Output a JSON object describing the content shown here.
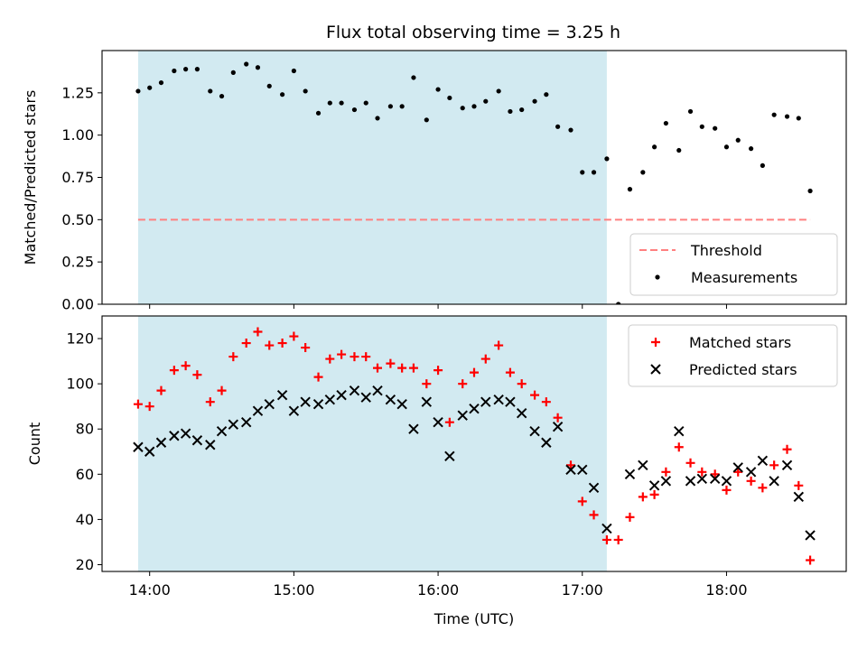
{
  "title": "Flux total observing time = 3.25 h",
  "colors": {
    "shade": "#add8e6",
    "threshold": "#ff8080",
    "matched": "#ff0000",
    "predicted": "#000000",
    "measurement": "#000000"
  },
  "chart_data": [
    {
      "type": "scatter",
      "ylabel": "Matched/Predicted stars",
      "xlim": [
        13.67,
        18.83
      ],
      "ylim": [
        0.0,
        1.5
      ],
      "yticks": [
        0.0,
        0.25,
        0.5,
        0.75,
        1.0,
        1.25
      ],
      "ytick_labels": [
        "0.00",
        "0.25",
        "0.50",
        "0.75",
        "1.00",
        "1.25"
      ],
      "shaded_interval": [
        13.92,
        17.17
      ],
      "threshold": {
        "name": "Threshold",
        "value": 0.5,
        "x_range": [
          13.92,
          18.58
        ],
        "style": "dashed"
      },
      "series": [
        {
          "name": "Measurements",
          "marker": "dot",
          "x": [
            13.92,
            14.0,
            14.08,
            14.17,
            14.25,
            14.33,
            14.42,
            14.5,
            14.58,
            14.67,
            14.75,
            14.83,
            14.92,
            15.0,
            15.08,
            15.17,
            15.25,
            15.33,
            15.42,
            15.5,
            15.58,
            15.67,
            15.75,
            15.83,
            15.92,
            16.0,
            16.08,
            16.17,
            16.25,
            16.33,
            16.42,
            16.5,
            16.58,
            16.67,
            16.75,
            16.83,
            16.92,
            17.0,
            17.08,
            17.17,
            17.25,
            17.33,
            17.42,
            17.5,
            17.58,
            17.67,
            17.75,
            17.83,
            17.92,
            18.0,
            18.08,
            18.17,
            18.25,
            18.33,
            18.42,
            18.5,
            18.58
          ],
          "y": [
            1.26,
            1.28,
            1.31,
            1.38,
            1.39,
            1.39,
            1.26,
            1.23,
            1.37,
            1.42,
            1.4,
            1.29,
            1.24,
            1.38,
            1.26,
            1.13,
            1.19,
            1.19,
            1.15,
            1.19,
            1.1,
            1.17,
            1.17,
            1.34,
            1.09,
            1.27,
            1.22,
            1.16,
            1.17,
            1.2,
            1.26,
            1.14,
            1.15,
            1.2,
            1.24,
            1.05,
            1.03,
            0.78,
            0.78,
            0.86,
            0.0,
            0.68,
            0.78,
            0.93,
            1.07,
            0.91,
            1.14,
            1.05,
            1.04,
            0.93,
            0.97,
            0.92,
            0.82,
            1.12,
            1.11,
            1.1,
            0.67
          ]
        }
      ]
    },
    {
      "type": "scatter",
      "xlabel": "Time (UTC)",
      "ylabel": "Count",
      "xlim": [
        13.67,
        18.83
      ],
      "ylim": [
        17,
        130
      ],
      "xticks": [
        14,
        15,
        16,
        17,
        18
      ],
      "xtick_labels": [
        "14:00",
        "15:00",
        "16:00",
        "17:00",
        "18:00"
      ],
      "yticks": [
        20,
        40,
        60,
        80,
        100,
        120
      ],
      "ytick_labels": [
        "20",
        "40",
        "60",
        "80",
        "100",
        "120"
      ],
      "shaded_interval": [
        13.92,
        17.17
      ],
      "series": [
        {
          "name": "Matched stars",
          "marker": "plus",
          "x": [
            13.92,
            14.0,
            14.08,
            14.17,
            14.25,
            14.33,
            14.42,
            14.5,
            14.58,
            14.67,
            14.75,
            14.83,
            14.92,
            15.0,
            15.08,
            15.17,
            15.25,
            15.33,
            15.42,
            15.5,
            15.58,
            15.67,
            15.75,
            15.83,
            15.92,
            16.0,
            16.08,
            16.17,
            16.25,
            16.33,
            16.42,
            16.5,
            16.58,
            16.67,
            16.75,
            16.83,
            16.92,
            17.0,
            17.08,
            17.17,
            17.25,
            17.33,
            17.42,
            17.5,
            17.58,
            17.67,
            17.75,
            17.83,
            17.92,
            18.0,
            18.08,
            18.17,
            18.25,
            18.33,
            18.42,
            18.5,
            18.58
          ],
          "y": [
            91,
            90,
            97,
            106,
            108,
            104,
            92,
            97,
            112,
            118,
            123,
            117,
            118,
            121,
            116,
            103,
            111,
            113,
            112,
            112,
            107,
            109,
            107,
            107,
            100,
            106,
            83,
            100,
            105,
            111,
            117,
            105,
            100,
            95,
            92,
            85,
            64,
            48,
            42,
            31,
            31,
            41,
            50,
            51,
            61,
            72,
            65,
            61,
            60,
            53,
            61,
            57,
            54,
            64,
            71,
            55,
            22
          ]
        },
        {
          "name": "Predicted stars",
          "marker": "x",
          "x": [
            13.92,
            14.0,
            14.08,
            14.17,
            14.25,
            14.33,
            14.42,
            14.5,
            14.58,
            14.67,
            14.75,
            14.83,
            14.92,
            15.0,
            15.08,
            15.17,
            15.25,
            15.33,
            15.42,
            15.5,
            15.58,
            15.67,
            15.75,
            15.83,
            15.92,
            16.0,
            16.08,
            16.17,
            16.25,
            16.33,
            16.42,
            16.5,
            16.58,
            16.67,
            16.75,
            16.83,
            16.92,
            17.0,
            17.08,
            17.17,
            17.33,
            17.42,
            17.5,
            17.58,
            17.67,
            17.75,
            17.83,
            17.92,
            18.0,
            18.08,
            18.17,
            18.25,
            18.33,
            18.42,
            18.5,
            18.58
          ],
          "y": [
            72,
            70,
            74,
            77,
            78,
            75,
            73,
            79,
            82,
            83,
            88,
            91,
            95,
            88,
            92,
            91,
            93,
            95,
            97,
            94,
            97,
            93,
            91,
            80,
            92,
            83,
            68,
            86,
            89,
            92,
            93,
            92,
            87,
            79,
            74,
            81,
            62,
            62,
            54,
            36,
            60,
            64,
            55,
            57,
            79,
            57,
            58,
            58,
            57,
            63,
            61,
            66,
            57,
            64,
            50,
            33
          ]
        }
      ]
    }
  ]
}
